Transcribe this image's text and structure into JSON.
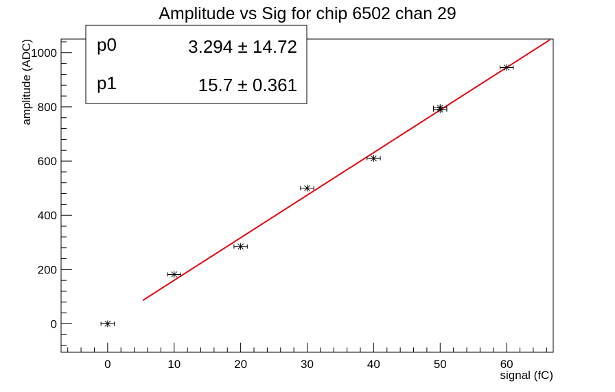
{
  "chart_data": {
    "type": "scatter",
    "title": "Amplitude vs Sig for chip 6502 chan 29",
    "xlabel": "signal (fC)",
    "ylabel": "amplitude (ADC)",
    "xlim": [
      -7,
      67
    ],
    "ylim": [
      -105,
      1050
    ],
    "x_ticks": [
      0,
      10,
      20,
      30,
      40,
      50,
      60
    ],
    "y_ticks": [
      0,
      200,
      400,
      600,
      800,
      1000
    ],
    "points": [
      {
        "x": 0,
        "y": 0,
        "xerr": 1
      },
      {
        "x": 10,
        "y": 182,
        "xerr": 1
      },
      {
        "x": 20,
        "y": 285,
        "xerr": 1
      },
      {
        "x": 30,
        "y": 500,
        "xerr": 1
      },
      {
        "x": 40,
        "y": 610,
        "xerr": 1
      },
      {
        "x": 50,
        "y": 790,
        "xerr": 1
      },
      {
        "x": 50,
        "y": 797,
        "xerr": 1
      },
      {
        "x": 60,
        "y": 945,
        "xerr": 1
      }
    ],
    "fit": {
      "x_range": [
        5.3,
        66.5
      ],
      "p0": 3.294,
      "p1": 15.7,
      "color": "#e8000b"
    },
    "stats": [
      {
        "name": "p0",
        "value": "3.294 ± 14.72"
      },
      {
        "name": "p1",
        "value": "15.7 ± 0.361"
      }
    ],
    "grid": false,
    "stats_box_position": "top-left"
  }
}
